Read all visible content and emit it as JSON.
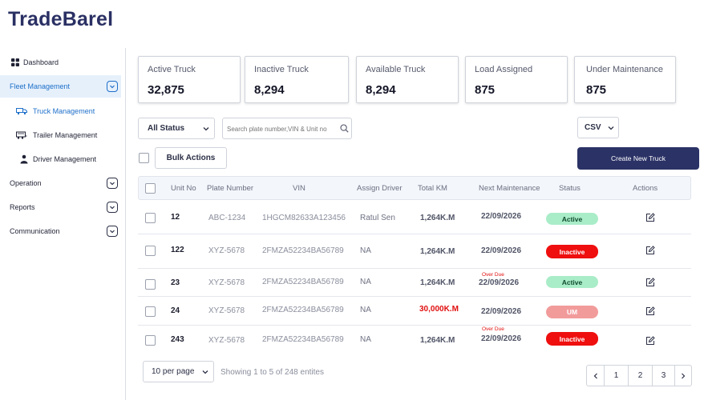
{
  "app": {
    "logo": "TradeBarel"
  },
  "sidebar": {
    "dashboard": "Dashboard",
    "fleet": "Fleet Management",
    "truck": "Truck Management",
    "trailer": "Trailer Management",
    "driver": "Driver Management",
    "operation": "Operation",
    "reports": "Reports",
    "communication": "Communication"
  },
  "stats": [
    {
      "title": "Active Truck",
      "value": "32,875"
    },
    {
      "title": "Inactive Truck",
      "value": "8,294"
    },
    {
      "title": "Available Truck",
      "value": "8,294"
    },
    {
      "title": "Load Assigned",
      "value": "875"
    },
    {
      "title": "Under Maintenance",
      "value": "875"
    }
  ],
  "filters": {
    "status": "All Status",
    "search_placeholder": "Search plate number,VIN & Unit no",
    "export": "CSV",
    "bulk": "Bulk Actions",
    "create": "Create New Truck"
  },
  "table": {
    "headers": {
      "unit": "Unit No",
      "plate": "Plate Number",
      "vin": "VIN",
      "driver": "Assign Driver",
      "km": "Total KM",
      "maint": "Next Maintenance",
      "status": "Status",
      "actions": "Actions"
    },
    "rows": [
      {
        "unit": "12",
        "plate": "ABC-1234",
        "vin": "1HGCM82633A123456",
        "driver": "Ratul Sen",
        "km": "1,264K.M",
        "overdue": "",
        "date": "22/09/2026",
        "status": "Active"
      },
      {
        "unit": "122",
        "plate": "XYZ-5678",
        "vin": "2FMZA52234BA56789",
        "driver": "NA",
        "km": "1,264K.M",
        "overdue": "",
        "date": "22/09/2026",
        "status": "Inactive"
      },
      {
        "unit": "23",
        "plate": "XYZ-5678",
        "vin": "2FMZA52234BA56789",
        "driver": "NA",
        "km": "1,264K.M",
        "overdue": "Over Due",
        "date": "22/09/2026",
        "status": "Active"
      },
      {
        "unit": "24",
        "plate": "XYZ-5678",
        "vin": "2FMZA52234BA56789",
        "driver": "NA",
        "km": "30,000K.M",
        "overdue": "",
        "date": "22/09/2026",
        "status": "UM"
      },
      {
        "unit": "243",
        "plate": "XYZ-5678",
        "vin": "2FMZA52234BA56789",
        "driver": "NA",
        "km": "1,264K.M",
        "overdue": "Over Due",
        "date": "22/09/2026",
        "status": "Inactive"
      }
    ]
  },
  "footer": {
    "per_page": "10 per page",
    "showing": "Showing 1 to 5 of 248 entites",
    "pages": [
      "1",
      "2",
      "3"
    ]
  },
  "colors": {
    "primary": "#2b3266",
    "active_bg": "#a9ecc8",
    "inactive_bg": "#ef0f0f",
    "um_bg": "#f29b9b",
    "overdue": "#e10f0f"
  }
}
